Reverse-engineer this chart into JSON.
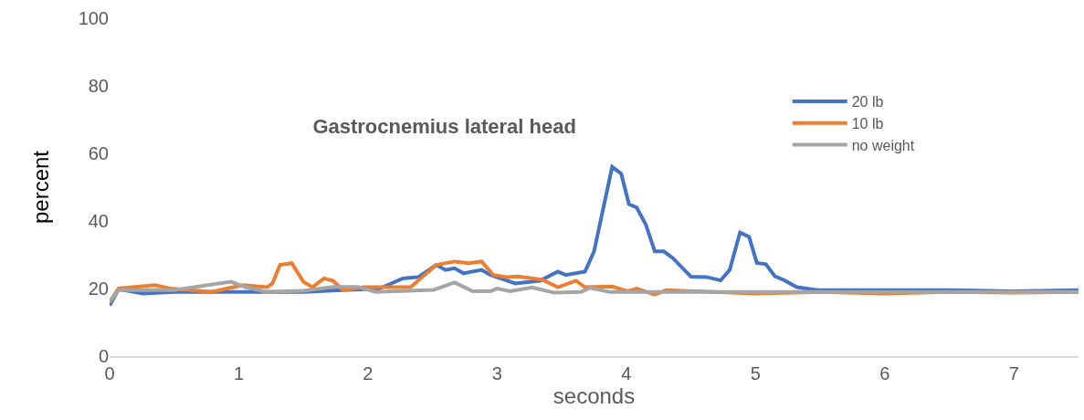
{
  "chart_data": {
    "type": "line",
    "title": "Gastrocnemius lateral head",
    "xlabel": "seconds",
    "ylabel": "percent",
    "xlim": [
      0,
      7.5
    ],
    "xticks": [
      0,
      1,
      2,
      3,
      4,
      5,
      6,
      7
    ],
    "ylim": [
      0,
      100
    ],
    "yticks": [
      0,
      20,
      40,
      60,
      80,
      100
    ],
    "grid": false,
    "legend": "top right",
    "marker": "none",
    "line_style": "solid",
    "series": [
      {
        "name": "20 lb",
        "color": "#4472c4",
        "x": [
          0,
          0.07,
          0.26,
          0.5,
          0.8,
          1.0,
          1.5,
          1.8,
          2.09,
          2.27,
          2.39,
          2.53,
          2.6,
          2.67,
          2.74,
          2.88,
          2.95,
          3.14,
          3.33,
          3.47,
          3.53,
          3.68,
          3.75,
          3.89,
          3.96,
          4.02,
          4.08,
          4.15,
          4.22,
          4.29,
          4.36,
          4.5,
          4.62,
          4.73,
          4.8,
          4.88,
          4.95,
          5.01,
          5.08,
          5.15,
          5.22,
          5.32,
          5.48,
          6.0,
          6.5,
          7.0,
          7.5
        ],
        "values": [
          15,
          19.8,
          18.5,
          19,
          19,
          19,
          19,
          19.5,
          20,
          23,
          23.4,
          27,
          25.5,
          26,
          24.5,
          25.5,
          24,
          21.5,
          22.3,
          25,
          24,
          25,
          31,
          56,
          54,
          45,
          44,
          39,
          31,
          31,
          29,
          23.5,
          23.4,
          22.4,
          25.5,
          36.6,
          35.3,
          27.6,
          27.2,
          23.6,
          22.5,
          20.4,
          19.5,
          19.5,
          19.5,
          19.2,
          19.5
        ]
      },
      {
        "name": "10 lb",
        "color": "#ed7d31",
        "x": [
          0,
          0.07,
          0.35,
          0.47,
          0.79,
          1.03,
          1.22,
          1.26,
          1.32,
          1.41,
          1.5,
          1.57,
          1.66,
          1.73,
          1.81,
          1.97,
          2.33,
          2.53,
          2.67,
          2.78,
          2.88,
          2.97,
          3.07,
          3.16,
          3.35,
          3.47,
          3.61,
          3.68,
          3.89,
          4.01,
          4.08,
          4.22,
          4.31,
          5.0,
          5.5,
          6.0,
          6.5,
          7.0,
          7.5
        ],
        "values": [
          16,
          20,
          21,
          20,
          19,
          21,
          20.4,
          21.5,
          27,
          27.5,
          22,
          20.4,
          23,
          22.3,
          19.5,
          20.4,
          20.4,
          27,
          28,
          27.5,
          28,
          24,
          23.4,
          23.6,
          22.6,
          20.4,
          22.3,
          20.4,
          20.6,
          19.2,
          20,
          18.2,
          19.5,
          18.5,
          19,
          18.5,
          19,
          18.8,
          19
        ]
      },
      {
        "name": "no weight",
        "color": "#a5a5a5",
        "x": [
          0,
          0.07,
          0.5,
          0.94,
          1.05,
          1.22,
          1.5,
          1.73,
          1.92,
          2.06,
          2.51,
          2.67,
          2.81,
          2.95,
          3.0,
          3.1,
          3.27,
          3.44,
          3.65,
          3.72,
          3.87,
          4.5,
          5.0,
          6.0,
          7.0,
          7.5
        ],
        "values": [
          16,
          19.5,
          19.5,
          22,
          20.4,
          19,
          19.3,
          20.5,
          20.5,
          19,
          19.6,
          21.8,
          19.2,
          19.2,
          20,
          19.2,
          20.3,
          18.8,
          19,
          20.2,
          19,
          19,
          19,
          19,
          19,
          19
        ]
      }
    ]
  }
}
